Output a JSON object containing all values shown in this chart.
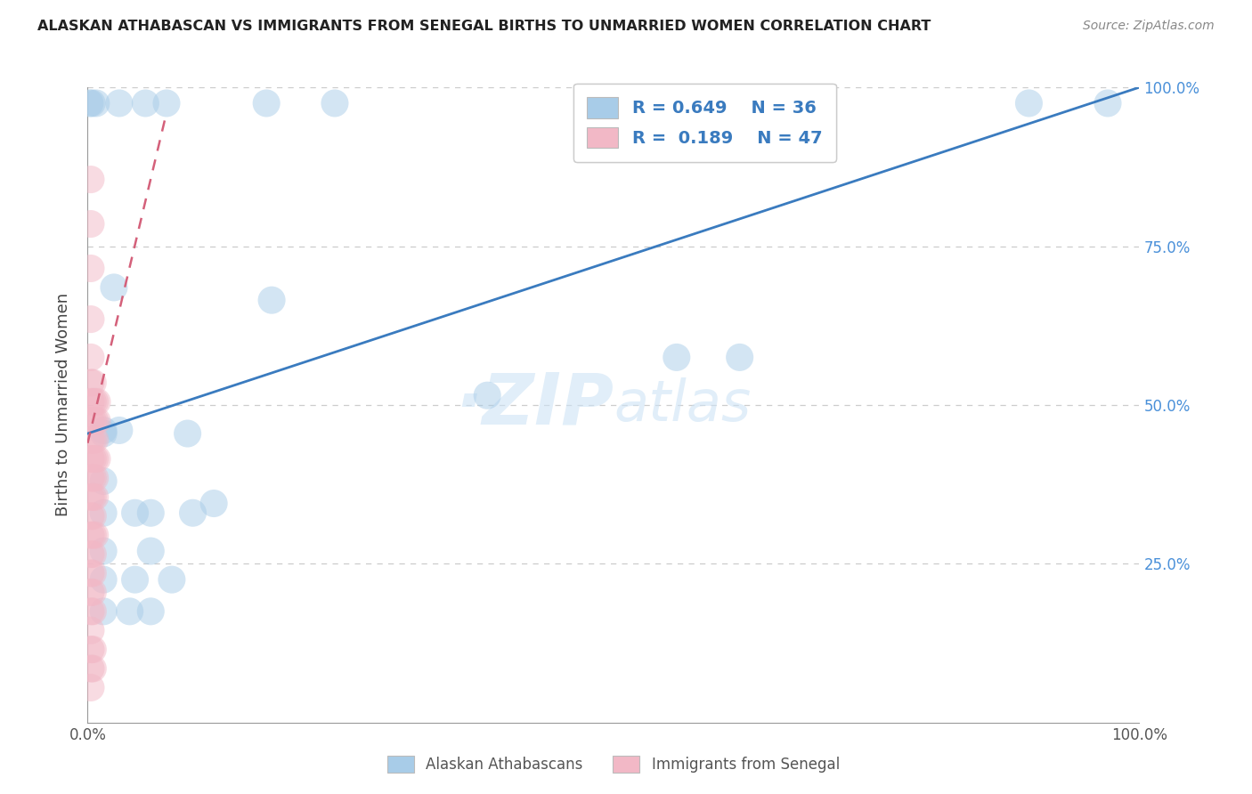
{
  "title": "ALASKAN ATHABASCAN VS IMMIGRANTS FROM SENEGAL BIRTHS TO UNMARRIED WOMEN CORRELATION CHART",
  "source": "Source: ZipAtlas.com",
  "ylabel": "Births to Unmarried Women",
  "blue_label": "Alaskan Athabascans",
  "pink_label": "Immigrants from Senegal",
  "blue_R": 0.649,
  "blue_N": 36,
  "pink_R": 0.189,
  "pink_N": 47,
  "blue_color": "#a8cce8",
  "pink_color": "#f2b8c6",
  "blue_line_color": "#3a7bbf",
  "pink_line_color": "#d4607a",
  "background_color": "#ffffff",
  "watermark_zip": "ZIP",
  "watermark_atlas": "atlas",
  "xlim": [
    0,
    1
  ],
  "ylim": [
    0,
    1
  ],
  "blue_dots": [
    [
      0.002,
      0.975
    ],
    [
      0.004,
      0.975
    ],
    [
      0.008,
      0.975
    ],
    [
      0.03,
      0.975
    ],
    [
      0.055,
      0.975
    ],
    [
      0.075,
      0.975
    ],
    [
      0.17,
      0.975
    ],
    [
      0.235,
      0.975
    ],
    [
      0.64,
      0.975
    ],
    [
      0.685,
      0.975
    ],
    [
      0.695,
      0.975
    ],
    [
      0.895,
      0.975
    ],
    [
      0.97,
      0.975
    ],
    [
      0.025,
      0.685
    ],
    [
      0.175,
      0.665
    ],
    [
      0.38,
      0.515
    ],
    [
      0.56,
      0.575
    ],
    [
      0.62,
      0.575
    ],
    [
      0.015,
      0.455
    ],
    [
      0.095,
      0.455
    ],
    [
      0.015,
      0.38
    ],
    [
      0.015,
      0.33
    ],
    [
      0.045,
      0.33
    ],
    [
      0.06,
      0.33
    ],
    [
      0.1,
      0.33
    ],
    [
      0.015,
      0.27
    ],
    [
      0.06,
      0.27
    ],
    [
      0.015,
      0.225
    ],
    [
      0.045,
      0.225
    ],
    [
      0.08,
      0.225
    ],
    [
      0.015,
      0.175
    ],
    [
      0.04,
      0.175
    ],
    [
      0.06,
      0.175
    ],
    [
      0.015,
      0.46
    ],
    [
      0.03,
      0.46
    ],
    [
      0.12,
      0.345
    ]
  ],
  "pink_dots": [
    [
      0.003,
      0.855
    ],
    [
      0.003,
      0.785
    ],
    [
      0.003,
      0.715
    ],
    [
      0.003,
      0.635
    ],
    [
      0.003,
      0.575
    ],
    [
      0.003,
      0.535
    ],
    [
      0.005,
      0.535
    ],
    [
      0.003,
      0.505
    ],
    [
      0.005,
      0.505
    ],
    [
      0.007,
      0.505
    ],
    [
      0.009,
      0.505
    ],
    [
      0.003,
      0.475
    ],
    [
      0.005,
      0.475
    ],
    [
      0.007,
      0.475
    ],
    [
      0.009,
      0.475
    ],
    [
      0.003,
      0.445
    ],
    [
      0.005,
      0.445
    ],
    [
      0.007,
      0.445
    ],
    [
      0.003,
      0.415
    ],
    [
      0.005,
      0.415
    ],
    [
      0.007,
      0.415
    ],
    [
      0.009,
      0.415
    ],
    [
      0.003,
      0.385
    ],
    [
      0.005,
      0.385
    ],
    [
      0.007,
      0.385
    ],
    [
      0.003,
      0.355
    ],
    [
      0.005,
      0.355
    ],
    [
      0.007,
      0.355
    ],
    [
      0.003,
      0.325
    ],
    [
      0.005,
      0.325
    ],
    [
      0.003,
      0.295
    ],
    [
      0.005,
      0.295
    ],
    [
      0.007,
      0.295
    ],
    [
      0.003,
      0.265
    ],
    [
      0.005,
      0.265
    ],
    [
      0.003,
      0.235
    ],
    [
      0.005,
      0.235
    ],
    [
      0.003,
      0.205
    ],
    [
      0.005,
      0.205
    ],
    [
      0.003,
      0.175
    ],
    [
      0.005,
      0.175
    ],
    [
      0.003,
      0.145
    ],
    [
      0.003,
      0.115
    ],
    [
      0.005,
      0.115
    ],
    [
      0.003,
      0.085
    ],
    [
      0.005,
      0.085
    ],
    [
      0.003,
      0.055
    ]
  ],
  "blue_line_x": [
    0.0,
    1.0
  ],
  "blue_line_y": [
    0.455,
    1.0
  ],
  "pink_line_x": [
    0.0,
    0.075
  ],
  "pink_line_y": [
    0.44,
    0.96
  ],
  "ytick_positions": [
    0.0,
    0.25,
    0.5,
    0.75,
    1.0
  ],
  "ytick_labels_right": [
    "",
    "25.0%",
    "50.0%",
    "75.0%",
    "100.0%"
  ],
  "xtick_positions": [
    0.0,
    0.25,
    0.5,
    0.75,
    1.0
  ],
  "xtick_labels": [
    "0.0%",
    "",
    "",
    "",
    "100.0%"
  ]
}
